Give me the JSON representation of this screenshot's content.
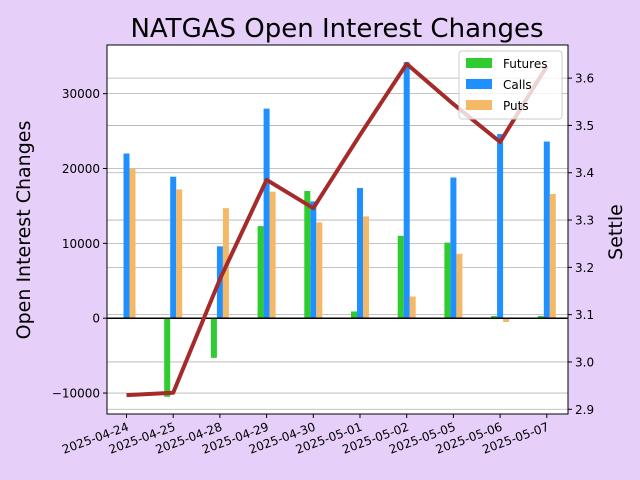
{
  "colors": {
    "background": "#e6cff8",
    "plot_background": "#ffffff",
    "futures": "#2ecc2e",
    "calls": "#1e90ff",
    "puts": "#f4b866",
    "settle_line": "#a52a2a",
    "grid": "#b0b0b0"
  },
  "chart_data": {
    "type": "bar",
    "title": "NATGAS Open Interest Changes",
    "ylabel": "Open Interest Changes",
    "y2label": "Settle",
    "categories": [
      "2025-04-24",
      "2025-04-25",
      "2025-04-28",
      "2025-04-29",
      "2025-04-30",
      "2025-05-01",
      "2025-05-02",
      "2025-05-05",
      "2025-05-06",
      "2025-05-07"
    ],
    "ylim": [
      -12800,
      36500
    ],
    "y_ticks": [
      -10000,
      0,
      10000,
      20000,
      30000
    ],
    "y_tick_labels": [
      "−10000",
      "0",
      "10000",
      "20000",
      "30000"
    ],
    "y2lim": [
      2.89,
      3.67
    ],
    "y2_ticks": [
      2.9,
      3.0,
      3.1,
      3.2,
      3.3,
      3.4,
      3.5,
      3.6
    ],
    "y2_tick_labels": [
      "2.9",
      "3.0",
      "3.1",
      "3.2",
      "3.3",
      "3.4",
      "3.5",
      "3.6"
    ],
    "grid": true,
    "legend_position": "top-right",
    "series": [
      {
        "name": "Futures",
        "type": "bar",
        "color": "#2ecc2e",
        "values": [
          0,
          -10500,
          -5300,
          12300,
          17000,
          900,
          11000,
          10100,
          300,
          300
        ]
      },
      {
        "name": "Calls",
        "type": "bar",
        "color": "#1e90ff",
        "values": [
          22000,
          18900,
          9600,
          28000,
          15600,
          17400,
          34200,
          18800,
          24600,
          23600
        ]
      },
      {
        "name": "Puts",
        "type": "bar",
        "color": "#f4b866",
        "values": [
          20000,
          17200,
          14700,
          16900,
          12800,
          13600,
          2900,
          8600,
          -500,
          16600
        ]
      },
      {
        "name": "Settle",
        "type": "line",
        "axis": "right",
        "color": "#a52a2a",
        "values": [
          2.93,
          2.935,
          3.175,
          3.385,
          3.325,
          3.48,
          3.63,
          3.545,
          3.465,
          3.625
        ]
      }
    ]
  }
}
